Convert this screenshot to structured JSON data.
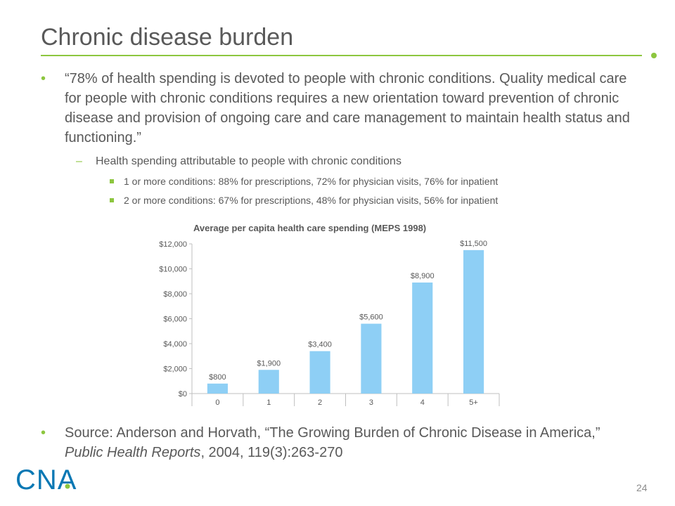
{
  "slide": {
    "title": "Chronic disease burden",
    "quote": "“78% of health spending is devoted to people with chronic conditions. Quality medical care for people with chronic conditions requires a new orientation toward prevention of chronic disease and provision of ongoing care and care management to maintain health status and functioning.”",
    "sub_bullet": "Health spending attributable to people with chronic conditions",
    "sub_sub_bullets": [
      "1 or more conditions: 88% for prescriptions, 72% for physician visits, 76% for inpatient",
      "2 or more conditions: 67% for prescriptions, 48% for physician visits, 56% for inpatient"
    ],
    "source_prefix": "Source: Anderson and Horvath, “The Growing Burden of Chronic Disease in America,” ",
    "source_journal": "Public Health Reports",
    "source_suffix": ", 2004, 119(3):263-270",
    "logo_text": "CNA",
    "page_number": "24",
    "accent_color": "#8dc63f",
    "bar_color": "#8ecff5"
  },
  "chart_data": {
    "type": "bar",
    "title": "Average per capita health care spending (MEPS 1998)",
    "categories": [
      "0",
      "1",
      "2",
      "3",
      "4",
      "5+"
    ],
    "values": [
      800,
      1900,
      3400,
      5600,
      8900,
      11500
    ],
    "data_labels": [
      "$800",
      "$1,900",
      "$3,400",
      "$5,600",
      "$8,900",
      "$11,500"
    ],
    "y_ticks": [
      0,
      2000,
      4000,
      6000,
      8000,
      10000,
      12000
    ],
    "y_tick_labels": [
      "$0",
      "$2,000",
      "$4,000",
      "$6,000",
      "$8,000",
      "$10,000",
      "$12,000"
    ],
    "ylim": [
      0,
      12000
    ],
    "xlabel": "",
    "ylabel": "",
    "grid": false,
    "legend": "none"
  }
}
